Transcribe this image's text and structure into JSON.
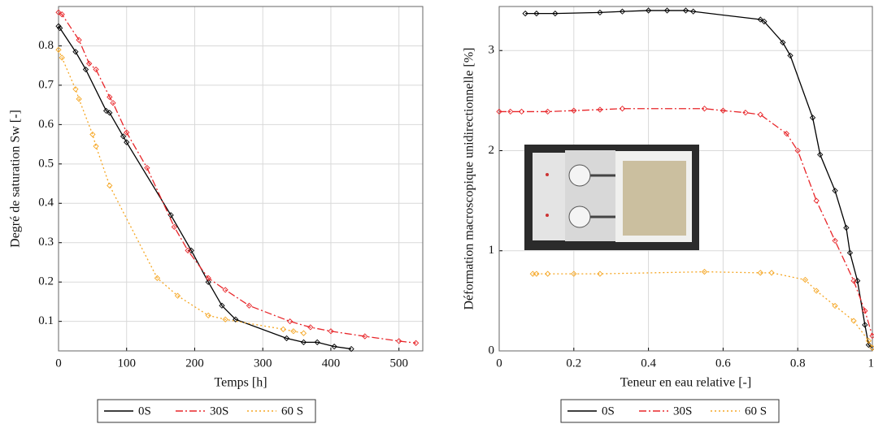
{
  "chart_data": [
    {
      "type": "line",
      "xlabel": "Temps [h]",
      "ylabel": "Degré de saturation Sw [-]",
      "xlim": [
        0,
        535
      ],
      "ylim": [
        0.025,
        0.9
      ],
      "xticks": [
        0,
        100,
        200,
        300,
        400,
        500
      ],
      "yticks": [
        0.1,
        0.2,
        0.3,
        0.4,
        0.5,
        0.6,
        0.7,
        0.8
      ],
      "grid": true,
      "series": [
        {
          "name": "0S",
          "color": "#000000",
          "dash": "solid",
          "marker": "diamond",
          "x": [
            0,
            2,
            25,
            40,
            70,
            75,
            95,
            100,
            165,
            195,
            220,
            240,
            260,
            335,
            360,
            380,
            405,
            430
          ],
          "values": [
            0.85,
            0.845,
            0.785,
            0.74,
            0.635,
            0.63,
            0.57,
            0.555,
            0.37,
            0.28,
            0.2,
            0.14,
            0.105,
            0.057,
            0.047,
            0.047,
            0.036,
            0.03
          ]
        },
        {
          "name": "30S",
          "color": "#e8262a",
          "dash": "dashdot",
          "marker": "diamond",
          "x": [
            0,
            5,
            30,
            45,
            55,
            75,
            80,
            100,
            130,
            170,
            190,
            220,
            245,
            280,
            340,
            370,
            400,
            450,
            500,
            525
          ],
          "values": [
            0.885,
            0.88,
            0.815,
            0.755,
            0.74,
            0.67,
            0.655,
            0.58,
            0.49,
            0.34,
            0.28,
            0.21,
            0.18,
            0.14,
            0.1,
            0.085,
            0.075,
            0.062,
            0.05,
            0.045
          ]
        },
        {
          "name": "60 S",
          "color": "#f5a623",
          "dash": "dotted",
          "marker": "diamond",
          "x": [
            0,
            5,
            25,
            30,
            50,
            55,
            75,
            145,
            175,
            220,
            245,
            330,
            345,
            360
          ],
          "values": [
            0.79,
            0.77,
            0.69,
            0.665,
            0.575,
            0.545,
            0.445,
            0.21,
            0.165,
            0.115,
            0.105,
            0.08,
            0.075,
            0.07
          ]
        }
      ]
    },
    {
      "type": "line",
      "xlabel": "Teneur en eau relative [-]",
      "ylabel": "Déformation macroscopique unidirectionnelle [%]",
      "xlim": [
        0,
        1
      ],
      "ylim": [
        0,
        3.44
      ],
      "xticks": [
        0,
        0.2,
        0.4,
        0.6,
        0.8,
        1
      ],
      "yticks": [
        0,
        1,
        2,
        3
      ],
      "grid": true,
      "series": [
        {
          "name": "0S",
          "color": "#000000",
          "dash": "solid",
          "marker": "diamond",
          "x": [
            0.07,
            0.1,
            0.15,
            0.27,
            0.33,
            0.4,
            0.45,
            0.5,
            0.52,
            0.7,
            0.71,
            0.76,
            0.78,
            0.84,
            0.86,
            0.9,
            0.93,
            0.94,
            0.96,
            0.98,
            0.99,
            1.0
          ],
          "values": [
            3.37,
            3.37,
            3.37,
            3.38,
            3.39,
            3.4,
            3.4,
            3.4,
            3.39,
            3.31,
            3.29,
            3.08,
            2.95,
            2.33,
            1.96,
            1.6,
            1.23,
            0.98,
            0.7,
            0.26,
            0.06,
            0.03
          ]
        },
        {
          "name": "30S",
          "color": "#e8262a",
          "dash": "dashdot",
          "marker": "diamond",
          "x": [
            0,
            0.03,
            0.06,
            0.13,
            0.2,
            0.27,
            0.33,
            0.55,
            0.6,
            0.66,
            0.7,
            0.77,
            0.8,
            0.85,
            0.9,
            0.95,
            0.98,
            1.0
          ],
          "values": [
            2.39,
            2.39,
            2.39,
            2.39,
            2.4,
            2.41,
            2.42,
            2.42,
            2.4,
            2.38,
            2.36,
            2.17,
            2.0,
            1.5,
            1.1,
            0.7,
            0.4,
            0.15
          ]
        },
        {
          "name": "60 S",
          "color": "#f5a623",
          "dash": "dotted",
          "marker": "diamond",
          "x": [
            0.09,
            0.1,
            0.13,
            0.2,
            0.27,
            0.55,
            0.7,
            0.73,
            0.82,
            0.85,
            0.9,
            0.95,
            0.99,
            1.0
          ],
          "values": [
            0.77,
            0.77,
            0.77,
            0.77,
            0.77,
            0.79,
            0.78,
            0.78,
            0.71,
            0.6,
            0.45,
            0.3,
            0.1,
            0.03
          ]
        }
      ]
    }
  ]
}
